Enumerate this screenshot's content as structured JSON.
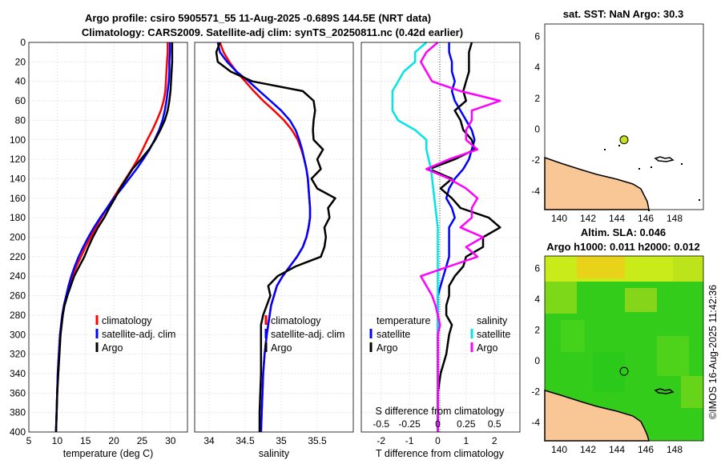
{
  "colors": {
    "climatology": "#ff0000",
    "satellite": "#0000ff",
    "argo": "#000000",
    "salinity_satellite": "#00e6e6",
    "salinity_argo": "#ff00ff",
    "land": "#f9c796",
    "sla_green": "#33cc1a",
    "sla_yellow": "#dff21a",
    "marker": "#c8e01a"
  },
  "titles": {
    "line1": "Argo profile: csiro 5905571_55 11-Aug-2025 -0.689S 144.5E (NRT data)",
    "line2": "Climatology: CARS2009. Satellite-adj clim: synTS_20250811.nc (0.42d earlier)",
    "sst": "sat. SST: NaN Argo: 30.3",
    "altim1": "Altim. SLA: 0.046",
    "altim2": "Argo h1000: 0.011 h2000: 0.012",
    "vertical": "©IMOS 16-Aug-2025 11:42:36"
  },
  "chart_data": [
    {
      "type": "line",
      "id": "temperature",
      "xlabel": "temperature (deg C)",
      "ylabel": "",
      "xlim": [
        5,
        33
      ],
      "ylim": [
        400,
        0
      ],
      "xticks": [
        "5",
        "10",
        "15",
        "20",
        "25",
        "30"
      ],
      "yticks": [
        "0",
        "20",
        "40",
        "60",
        "80",
        "100",
        "120",
        "140",
        "160",
        "180",
        "200",
        "220",
        "240",
        "260",
        "280",
        "300",
        "320",
        "340",
        "360",
        "380",
        "400"
      ],
      "depth": [
        0,
        10,
        20,
        30,
        40,
        50,
        60,
        70,
        80,
        90,
        100,
        110,
        120,
        130,
        140,
        150,
        160,
        170,
        180,
        190,
        200,
        210,
        220,
        230,
        240,
        250,
        260,
        270,
        280,
        290,
        300,
        320,
        340,
        360,
        380,
        400
      ],
      "series": [
        {
          "name": "climatology",
          "values": [
            29.5,
            29.5,
            29.4,
            29.3,
            29.2,
            29.1,
            28.8,
            28.3,
            27.6,
            26.8,
            25.9,
            25.1,
            24.2,
            23.2,
            22.1,
            21.0,
            19.9,
            18.8,
            17.8,
            16.8,
            15.9,
            15.0,
            14.2,
            13.4,
            12.7,
            12.1,
            11.6,
            11.2,
            10.9,
            10.7,
            10.5,
            10.3,
            10.1,
            10.0,
            9.9,
            9.8
          ]
        },
        {
          "name": "satellite-adj. clim",
          "values": [
            29.9,
            29.9,
            29.8,
            29.8,
            29.7,
            29.5,
            29.3,
            29.0,
            28.6,
            28.0,
            27.2,
            26.3,
            25.2,
            24.0,
            22.7,
            21.4,
            20.0,
            18.8,
            17.6,
            16.5,
            15.5,
            14.6,
            13.8,
            13.1,
            12.5,
            12.0,
            11.6,
            11.2,
            10.9,
            10.7,
            10.5,
            10.3,
            10.1,
            10.0,
            9.9,
            9.8
          ]
        },
        {
          "name": "Argo",
          "values": [
            30.3,
            30.3,
            30.3,
            30.2,
            30.1,
            30.0,
            29.8,
            29.5,
            29.0,
            28.2,
            27.3,
            26.2,
            24.8,
            23.3,
            22.2,
            21.1,
            20.2,
            19.2,
            18.3,
            17.2,
            16.3,
            15.5,
            14.8,
            13.9,
            13.0,
            12.4,
            11.8,
            11.3,
            11.0,
            10.8,
            10.6,
            10.4,
            10.2,
            10.0,
            9.9,
            9.8
          ]
        }
      ],
      "legend": [
        "climatology",
        "satellite-adj. clim",
        "Argo"
      ]
    },
    {
      "type": "line",
      "id": "salinity",
      "xlabel": "salinity",
      "xlim": [
        33.8,
        36.0
      ],
      "ylim": [
        400,
        0
      ],
      "xticks": [
        "34",
        "34.5",
        "35",
        "35.5"
      ],
      "depth": [
        0,
        10,
        20,
        30,
        40,
        50,
        60,
        70,
        80,
        90,
        100,
        110,
        120,
        130,
        140,
        150,
        160,
        170,
        180,
        190,
        200,
        210,
        220,
        230,
        240,
        250,
        260,
        270,
        280,
        290,
        300,
        320,
        340,
        360,
        380,
        400
      ],
      "series": [
        {
          "name": "climatology",
          "values": [
            34.15,
            34.2,
            34.28,
            34.38,
            34.5,
            34.62,
            34.75,
            34.9,
            35.04,
            35.15,
            35.23,
            35.28,
            35.32,
            35.35,
            35.37,
            35.38,
            35.39,
            35.4,
            35.4,
            35.38,
            35.35,
            35.3,
            35.22,
            35.12,
            35.02,
            34.94,
            34.9,
            34.86,
            34.84,
            34.82,
            34.8,
            34.77,
            34.75,
            34.74,
            34.73,
            34.72
          ]
        },
        {
          "name": "satellite-adj. clim",
          "values": [
            34.12,
            34.15,
            34.25,
            34.38,
            34.55,
            34.7,
            34.85,
            35.0,
            35.12,
            35.2,
            35.25,
            35.29,
            35.32,
            35.35,
            35.37,
            35.38,
            35.39,
            35.4,
            35.4,
            35.38,
            35.35,
            35.3,
            35.22,
            35.12,
            35.02,
            34.94,
            34.9,
            34.86,
            34.84,
            34.82,
            34.8,
            34.77,
            34.75,
            34.74,
            34.73,
            34.72
          ]
        },
        {
          "name": "Argo",
          "values": [
            34.15,
            34.1,
            34.12,
            34.3,
            34.6,
            35.3,
            35.45,
            35.47,
            35.45,
            35.44,
            35.45,
            35.58,
            35.5,
            35.55,
            35.42,
            35.5,
            35.75,
            35.65,
            35.67,
            35.6,
            35.62,
            35.6,
            35.55,
            35.2,
            34.95,
            34.82,
            34.85,
            34.8,
            34.75,
            34.72,
            34.72,
            34.72,
            34.72,
            34.71,
            34.7,
            34.7
          ]
        }
      ],
      "legend": [
        "climatology",
        "satellite-adj. clim",
        "Argo"
      ]
    },
    {
      "type": "line",
      "id": "difference",
      "xlabel": "T difference from climatology",
      "xlabel_top": "S difference from climatology",
      "xlim": [
        -2.7,
        2.9
      ],
      "ylim": [
        400,
        0
      ],
      "xticks": [
        "-2",
        "-1",
        "0",
        "1",
        "2"
      ],
      "xticks_top": [
        "-0.5",
        "-0.25",
        "0",
        "0.25",
        "0.5"
      ],
      "depth": [
        0,
        10,
        20,
        30,
        40,
        50,
        60,
        70,
        80,
        90,
        100,
        110,
        120,
        130,
        140,
        150,
        160,
        170,
        180,
        190,
        200,
        210,
        220,
        230,
        240,
        250,
        260,
        270,
        280,
        290,
        300,
        320,
        340,
        360,
        380,
        400
      ],
      "series": [
        {
          "name": "temperature satellite",
          "values": [
            0.4,
            0.4,
            0.5,
            0.5,
            0.6,
            0.5,
            0.6,
            0.8,
            1.0,
            1.2,
            1.3,
            1.2,
            1.1,
            0.9,
            0.6,
            0.4,
            0.3,
            0.5,
            0.6,
            0.4,
            0.4,
            0.4,
            0.4,
            0.3,
            0.2,
            0.1,
            0.0,
            0.0,
            0.0,
            0.0,
            0.0,
            0.0,
            0.0,
            0.0,
            0.0,
            0.0
          ]
        },
        {
          "name": "temperature Argo",
          "values": [
            1.2,
            1.1,
            1.1,
            1.1,
            1.0,
            0.9,
            1.0,
            0.6,
            0.8,
            0.9,
            1.2,
            1.3,
            0.6,
            -0.3,
            0.5,
            0.1,
            0.5,
            0.8,
            1.8,
            2.2,
            1.6,
            1.6,
            1.0,
            0.9,
            0.6,
            0.4,
            0.4,
            0.3,
            0.3,
            0.5,
            0.4,
            0.3,
            0.1,
            0.0,
            0.0,
            0.0
          ]
        },
        {
          "name": "salinity satellite",
          "values": [
            -0.1,
            -0.2,
            -0.2,
            -0.3,
            -0.35,
            -0.4,
            -0.4,
            -0.4,
            -0.35,
            -0.2,
            -0.1,
            -0.1,
            -0.08,
            -0.06,
            -0.05,
            -0.04,
            -0.03,
            -0.02,
            -0.01,
            0.0,
            0.0,
            0.0,
            0.0,
            0.0,
            0.0,
            0.0,
            0.0,
            0.0,
            0.0,
            0.0,
            0.0,
            0.0,
            0.0,
            0.0,
            0.0,
            0.0
          ]
        },
        {
          "name": "salinity Argo",
          "values": [
            0.0,
            -0.1,
            -0.15,
            -0.1,
            -0.05,
            0.2,
            0.55,
            0.3,
            0.3,
            0.25,
            0.25,
            0.35,
            0.1,
            -0.1,
            0.1,
            0.25,
            0.35,
            0.3,
            0.3,
            0.2,
            0.4,
            0.25,
            0.35,
            0.1,
            -0.15,
            -0.1,
            -0.05,
            -0.02,
            0.0,
            0.02,
            0.0,
            0.0,
            0.0,
            0.0,
            0.0,
            0.0
          ]
        }
      ],
      "legend": [
        "temperature",
        "satellite",
        "Argo",
        "salinity",
        "satellite",
        "Argo"
      ]
    },
    {
      "type": "map",
      "id": "sst",
      "xticks": [
        "140",
        "142",
        "144",
        "146",
        "148"
      ],
      "yticks": [
        "6",
        "4",
        "2",
        "0",
        "-2",
        "-4"
      ],
      "xlim": [
        139,
        150
      ],
      "ylim": [
        -5.2,
        6.8
      ],
      "argo_position": {
        "lon": 144.5,
        "lat": -0.689
      }
    },
    {
      "type": "map",
      "id": "sla",
      "xticks": [
        "140",
        "142",
        "144",
        "146",
        "148"
      ],
      "yticks": [
        "6",
        "4",
        "2",
        "0",
        "-2",
        "-4"
      ],
      "xlim": [
        139,
        150
      ],
      "ylim": [
        -5.2,
        6.8
      ],
      "argo_position": {
        "lon": 144.5,
        "lat": -0.689
      }
    }
  ]
}
